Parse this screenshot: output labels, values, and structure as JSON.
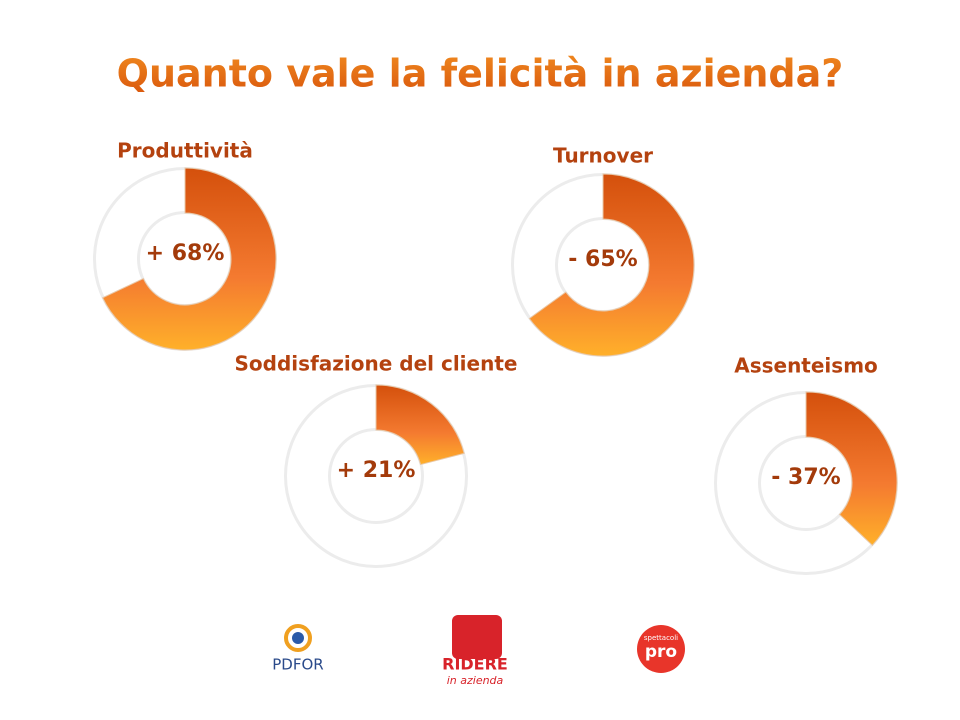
{
  "slide": {
    "title": "Quanto vale la felicità in azienda?"
  },
  "chart_data": [
    {
      "type": "donut",
      "title": "Produttività",
      "values": [
        68
      ],
      "value_labels": [
        "+ 68%"
      ]
    },
    {
      "type": "donut",
      "title": "Turnover",
      "values": [
        -65
      ],
      "value_labels": [
        "- 65%"
      ]
    },
    {
      "type": "donut",
      "title": "Soddisfazione del cliente",
      "values": [
        21
      ],
      "value_labels": [
        "+ 21%"
      ]
    },
    {
      "type": "donut",
      "title": "Assenteismo",
      "values": [
        -37
      ],
      "value_labels": [
        "- 37%"
      ]
    }
  ],
  "logos": [
    "PDFOR",
    "RIDERE",
    "in azienda",
    "spettacoli",
    "pro"
  ]
}
